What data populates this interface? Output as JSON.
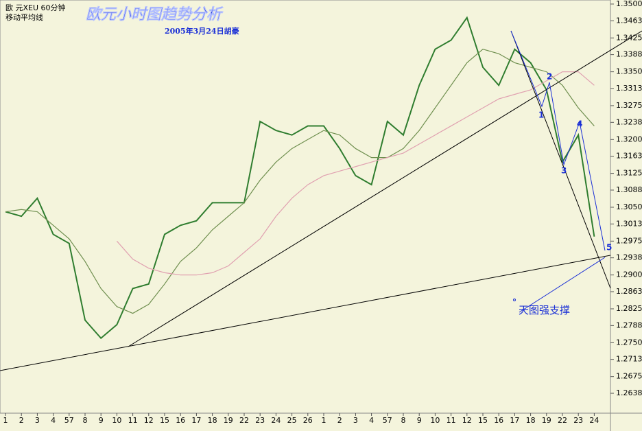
{
  "chart_data": {
    "type": "line",
    "header": "欧 元XEU 60分钟",
    "indicator": "移动平均线",
    "title": "欧元小时图趋势分析",
    "subtitle": "2005年3月24日胡豪",
    "categories": [
      "1",
      "2",
      "3",
      "4",
      "57",
      "8",
      "9",
      "10",
      "11",
      "12",
      "15",
      "16",
      "17",
      "18",
      "19",
      "22",
      "23",
      "24",
      "25",
      "26",
      "1",
      "2",
      "3",
      "4",
      "57",
      "8",
      "9",
      "10",
      "11",
      "12",
      "15",
      "16",
      "17",
      "18",
      "19",
      "22",
      "23",
      "24"
    ],
    "series": [
      {
        "color": "#2f7d2f",
        "values": [
          1.304,
          1.303,
          1.307,
          1.299,
          1.297,
          1.28,
          1.276,
          1.279,
          1.287,
          1.288,
          1.299,
          1.301,
          1.302,
          1.306,
          1.306,
          1.306,
          1.324,
          1.322,
          1.321,
          1.323,
          1.323,
          1.318,
          1.312,
          1.31,
          1.324,
          1.321,
          1.332,
          1.34,
          1.342,
          1.347,
          1.336,
          1.332,
          1.34,
          1.337,
          1.331,
          1.315,
          1.321,
          1.2985
        ]
      },
      {
        "color": "#6f8f4f",
        "values": [
          1.304,
          1.3045,
          1.304,
          1.301,
          1.298,
          1.293,
          1.287,
          1.283,
          1.2815,
          1.2835,
          1.288,
          1.293,
          1.296,
          1.3,
          1.303,
          1.306,
          1.311,
          1.315,
          1.318,
          1.32,
          1.322,
          1.321,
          1.318,
          1.316,
          1.316,
          1.318,
          1.322,
          1.327,
          1.332,
          1.337,
          1.34,
          1.339,
          1.337,
          1.336,
          1.335,
          1.332,
          1.327,
          1.323
        ]
      },
      {
        "color": "#e0a0b0",
        "values": [
          null,
          null,
          null,
          null,
          null,
          null,
          null,
          1.2975,
          1.2935,
          1.2915,
          1.2905,
          1.29,
          1.29,
          1.2905,
          1.292,
          1.295,
          1.298,
          1.303,
          1.307,
          1.31,
          1.312,
          1.313,
          1.314,
          1.315,
          1.316,
          1.317,
          1.319,
          1.321,
          1.323,
          1.325,
          1.327,
          1.329,
          1.33,
          1.331,
          1.333,
          1.335,
          1.335,
          1.332
        ]
      }
    ],
    "ylim": [
      1.2597,
      1.3509
    ],
    "yticks": [
      {
        "value": 1.35,
        "label": "1.3500"
      },
      1.3463,
      1.3425,
      1.3388,
      {
        "value": 1.335,
        "label": "1.3350"
      },
      1.3313,
      1.3275,
      1.3238,
      {
        "value": 1.32,
        "label": "1.3200"
      },
      1.3163,
      1.3125,
      1.3088,
      {
        "value": 1.305,
        "label": "1.3050"
      },
      1.3013,
      1.2975,
      1.2938,
      {
        "value": 1.29,
        "label": "1.2900"
      },
      1.2863,
      1.2825,
      1.2788,
      {
        "value": 1.275,
        "label": "1.2750"
      },
      1.2713,
      1.2675,
      1.2638
    ],
    "annotations": [
      "1",
      "2",
      "3",
      "4",
      "5",
      "天图强支撑"
    ]
  }
}
